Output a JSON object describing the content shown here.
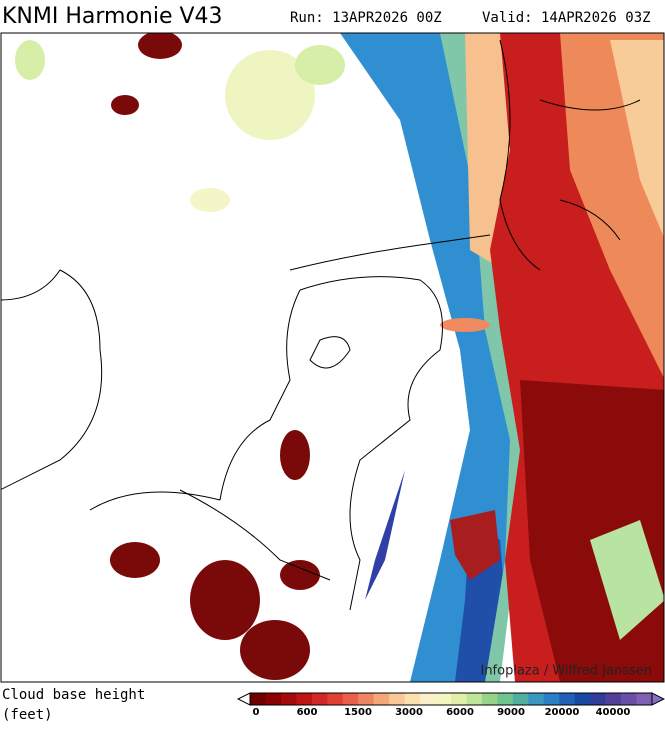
{
  "header": {
    "title": "KNMI Harmonie V43",
    "run": "Run: 13APR2026 00Z",
    "valid": "Valid: 14APR2026 03Z"
  },
  "map": {
    "credit": "Infoplaza / Wilfred Janssen"
  },
  "legend": {
    "title_line1": "Cloud base height",
    "title_line2": "(feet)",
    "ticks": [
      "0",
      "600",
      "1500",
      "3000",
      "6000",
      "9000",
      "20000",
      "40000"
    ]
  }
}
